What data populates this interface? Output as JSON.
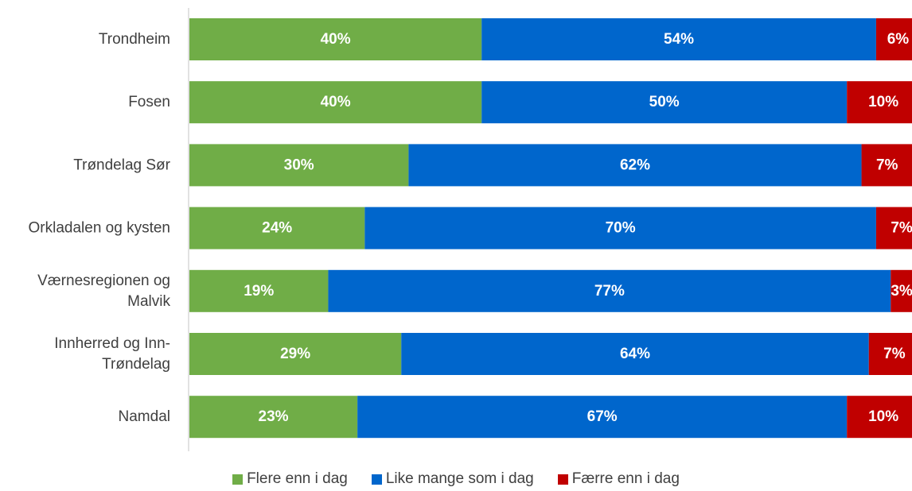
{
  "chart_data": {
    "type": "bar",
    "orientation": "horizontal",
    "stacked": true,
    "categories": [
      [
        "Trondheim"
      ],
      [
        "Fosen"
      ],
      [
        "Trøndelag Sør"
      ],
      [
        "Orkladalen og kysten"
      ],
      [
        "Værnesregionen og",
        "Malvik"
      ],
      [
        "Innherred og Inn-",
        "Trøndelag"
      ],
      [
        "Namdal"
      ]
    ],
    "series": [
      {
        "name": "Flere enn i dag",
        "color": "#70ad47",
        "values": [
          40,
          40,
          30,
          24,
          19,
          29,
          23
        ],
        "labels": [
          "40%",
          "40%",
          "30%",
          "24%",
          "19%",
          "29%",
          "23%"
        ]
      },
      {
        "name": "Like mange som i dag",
        "color": "#0066cc",
        "values": [
          54,
          50,
          62,
          70,
          77,
          64,
          67
        ],
        "labels": [
          "54%",
          "50%",
          "62%",
          "70%",
          "77%",
          "64%",
          "67%"
        ]
      },
      {
        "name": "Færre enn i dag",
        "color": "#c00000",
        "values": [
          6,
          10,
          7,
          7,
          3,
          7,
          10
        ],
        "labels": [
          "6%",
          "10%",
          "7%",
          "7%",
          "3%",
          "7%",
          "10%"
        ]
      }
    ],
    "xlim": [
      0,
      100
    ],
    "grid": false,
    "legend_position": "bottom"
  }
}
